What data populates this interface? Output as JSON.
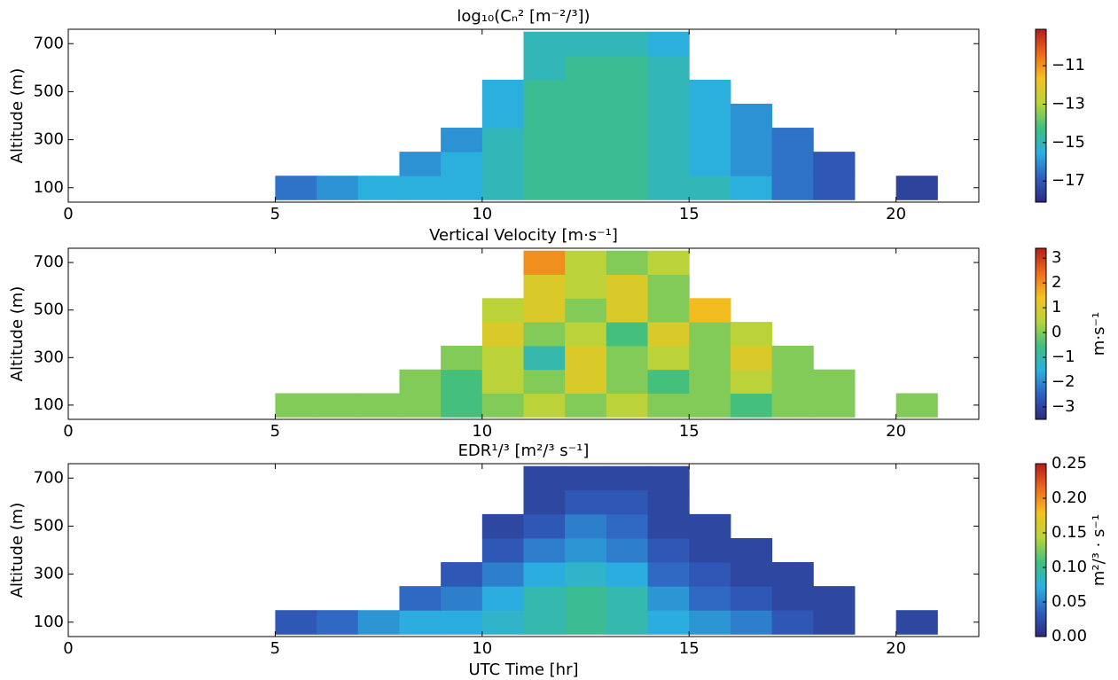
{
  "chart_data": [
    {
      "type": "heatmap",
      "title": "log₁₀(Cₙ²  [m⁻²/³])",
      "ylabel": "Altitude  (m)",
      "xlim": [
        0,
        22
      ],
      "xticks": [
        0,
        5,
        10,
        15,
        20
      ],
      "ylim": [
        40,
        760
      ],
      "yticks": [
        100,
        300,
        500,
        700
      ],
      "xbins": [
        0,
        1,
        2,
        3,
        4,
        5,
        6,
        7,
        8,
        9,
        10,
        11,
        12,
        13,
        14,
        15,
        16,
        17,
        18,
        19,
        20,
        21,
        22
      ],
      "ybins": [
        50,
        150,
        250,
        350,
        450,
        550,
        650,
        750
      ],
      "z": [
        [
          null,
          null,
          null,
          null,
          null,
          -16.5,
          -16,
          -15.5,
          -15.5,
          -15.5,
          -15,
          -14.5,
          -14.5,
          -14.5,
          -15,
          -15,
          -15.5,
          -16.5,
          -17,
          null,
          -17.5,
          null
        ],
        [
          null,
          null,
          null,
          null,
          null,
          null,
          null,
          null,
          -16,
          -15.5,
          -15,
          -14.5,
          -14.5,
          -14.5,
          -15,
          -15.5,
          -16,
          -16.5,
          -17,
          null,
          null,
          null
        ],
        [
          null,
          null,
          null,
          null,
          null,
          null,
          null,
          null,
          null,
          -16,
          -15,
          -14.5,
          -14.5,
          -14.5,
          -15,
          -15.5,
          -16,
          -16.5,
          null,
          null,
          null,
          null
        ],
        [
          null,
          null,
          null,
          null,
          null,
          null,
          null,
          null,
          null,
          null,
          -15.5,
          -14.5,
          -14.5,
          -14.5,
          -15,
          -15.5,
          -16,
          null,
          null,
          null,
          null,
          null
        ],
        [
          null,
          null,
          null,
          null,
          null,
          null,
          null,
          null,
          null,
          null,
          -15.5,
          -14.5,
          -14.5,
          -14.5,
          -15,
          -15.5,
          null,
          null,
          null,
          null,
          null,
          null
        ],
        [
          null,
          null,
          null,
          null,
          null,
          null,
          null,
          null,
          null,
          null,
          null,
          -15,
          -14.5,
          -14.5,
          -15,
          null,
          null,
          null,
          null,
          null,
          null,
          null
        ],
        [
          null,
          null,
          null,
          null,
          null,
          null,
          null,
          null,
          null,
          null,
          null,
          -15,
          -15,
          -15,
          -15.5,
          null,
          null,
          null,
          null,
          null,
          null,
          null
        ]
      ],
      "clim": [
        -18.1,
        -9.1
      ],
      "cticks": [
        {
          "value": -17,
          "label": "−17"
        },
        {
          "value": -15,
          "label": "−15"
        },
        {
          "value": -13,
          "label": "−13"
        },
        {
          "value": -11,
          "label": "−11"
        }
      ],
      "colormap": [
        "#2c2a7e",
        "#2f5fbf",
        "#2bb0e0",
        "#3fbf7f",
        "#b8d43a",
        "#f3c21e",
        "#ef6a1c",
        "#b51b1b"
      ]
    },
    {
      "type": "heatmap",
      "title": "Vertical Velocity   [m·s⁻¹]",
      "ylabel": "Altitude  (m)",
      "clabel": "m·s⁻¹",
      "xlim": [
        0,
        22
      ],
      "xticks": [
        0,
        5,
        10,
        15,
        20
      ],
      "ylim": [
        40,
        760
      ],
      "yticks": [
        100,
        300,
        500,
        700
      ],
      "xbins": [
        0,
        1,
        2,
        3,
        4,
        5,
        6,
        7,
        8,
        9,
        10,
        11,
        12,
        13,
        14,
        15,
        16,
        17,
        18,
        19,
        20,
        21,
        22
      ],
      "ybins": [
        50,
        150,
        250,
        350,
        450,
        550,
        650,
        750
      ],
      "z": [
        [
          null,
          null,
          null,
          null,
          null,
          0,
          0,
          0,
          0,
          -0.5,
          0,
          0.5,
          0,
          0.5,
          0,
          0,
          -0.5,
          0,
          0,
          null,
          0,
          null
        ],
        [
          null,
          null,
          null,
          null,
          null,
          null,
          null,
          null,
          0,
          -0.5,
          0.5,
          0,
          1,
          0,
          -0.5,
          0,
          0.5,
          0,
          0,
          null,
          null,
          null
        ],
        [
          null,
          null,
          null,
          null,
          null,
          null,
          null,
          null,
          null,
          0,
          0.5,
          -1,
          1,
          0,
          0.5,
          0,
          1,
          0,
          null,
          null,
          null,
          null
        ],
        [
          null,
          null,
          null,
          null,
          null,
          null,
          null,
          null,
          null,
          null,
          1,
          0,
          0.5,
          -0.5,
          1,
          0,
          0.5,
          null,
          null,
          null,
          null,
          null
        ],
        [
          null,
          null,
          null,
          null,
          null,
          null,
          null,
          null,
          null,
          null,
          0.5,
          1,
          0,
          1,
          0,
          1.5,
          null,
          null,
          null,
          null,
          null,
          null
        ],
        [
          null,
          null,
          null,
          null,
          null,
          null,
          null,
          null,
          null,
          null,
          null,
          1,
          0.5,
          1,
          0,
          null,
          null,
          null,
          null,
          null,
          null,
          null
        ],
        [
          null,
          null,
          null,
          null,
          null,
          null,
          null,
          null,
          null,
          null,
          null,
          2,
          0.5,
          0,
          0.5,
          null,
          null,
          null,
          null,
          null,
          null,
          null
        ]
      ],
      "clim": [
        -3.5,
        3.4
      ],
      "cticks": [
        {
          "value": -3,
          "label": "−3"
        },
        {
          "value": -2,
          "label": "−2"
        },
        {
          "value": -1,
          "label": "−1"
        },
        0,
        1,
        2,
        3
      ],
      "colormap": [
        "#2c2a7e",
        "#2f5fbf",
        "#2bb0e0",
        "#3fbf7f",
        "#b8d43a",
        "#f3c21e",
        "#ef6a1c",
        "#b51b1b"
      ]
    },
    {
      "type": "heatmap",
      "title": "EDR¹/³  [m²/³ s⁻¹]",
      "ylabel": "Altitude  (m)",
      "xlabel": "UTC  Time [hr]",
      "clabel": "m²/³ · s⁻¹",
      "xlim": [
        0,
        22
      ],
      "xticks": [
        0,
        5,
        10,
        15,
        20
      ],
      "ylim": [
        40,
        760
      ],
      "yticks": [
        100,
        300,
        500,
        700
      ],
      "xbins": [
        0,
        1,
        2,
        3,
        4,
        5,
        6,
        7,
        8,
        9,
        10,
        11,
        12,
        13,
        14,
        15,
        16,
        17,
        18,
        19,
        20,
        21,
        22
      ],
      "ybins": [
        50,
        150,
        250,
        350,
        450,
        550,
        650,
        750
      ],
      "z": [
        [
          null,
          null,
          null,
          null,
          null,
          0.03,
          0.04,
          0.06,
          0.07,
          0.07,
          0.08,
          0.09,
          0.1,
          0.09,
          0.07,
          0.06,
          0.05,
          0.03,
          0.02,
          null,
          0.02,
          null
        ],
        [
          null,
          null,
          null,
          null,
          null,
          null,
          null,
          null,
          0.04,
          0.05,
          0.07,
          0.09,
          0.1,
          0.09,
          0.06,
          0.04,
          0.03,
          0.02,
          0.02,
          null,
          null,
          null
        ],
        [
          null,
          null,
          null,
          null,
          null,
          null,
          null,
          null,
          null,
          0.03,
          0.05,
          0.07,
          0.08,
          0.07,
          0.04,
          0.03,
          0.02,
          0.02,
          null,
          null,
          null,
          null
        ],
        [
          null,
          null,
          null,
          null,
          null,
          null,
          null,
          null,
          null,
          null,
          0.03,
          0.05,
          0.06,
          0.05,
          0.03,
          0.02,
          0.02,
          null,
          null,
          null,
          null,
          null
        ],
        [
          null,
          null,
          null,
          null,
          null,
          null,
          null,
          null,
          null,
          null,
          0.02,
          0.03,
          0.05,
          0.04,
          0.02,
          0.02,
          null,
          null,
          null,
          null,
          null,
          null
        ],
        [
          null,
          null,
          null,
          null,
          null,
          null,
          null,
          null,
          null,
          null,
          null,
          0.02,
          0.03,
          0.03,
          0.02,
          null,
          null,
          null,
          null,
          null,
          null,
          null
        ],
        [
          null,
          null,
          null,
          null,
          null,
          null,
          null,
          null,
          null,
          null,
          null,
          0.02,
          0.02,
          0.02,
          0.02,
          null,
          null,
          null,
          null,
          null,
          null,
          null
        ]
      ],
      "clim": [
        0,
        0.25
      ],
      "cticks": [
        {
          "value": 0,
          "label": "0.00"
        },
        {
          "value": 0.05,
          "label": "0.05"
        },
        {
          "value": 0.1,
          "label": "0.10"
        },
        {
          "value": 0.15,
          "label": "0.15"
        },
        {
          "value": 0.2,
          "label": "0.20"
        },
        {
          "value": 0.25,
          "label": "0.25"
        }
      ],
      "colormap": [
        "#2c2a7e",
        "#2f5fbf",
        "#2bb0e0",
        "#3fbf7f",
        "#b8d43a",
        "#f3c21e",
        "#ef6a1c",
        "#b51b1b"
      ]
    }
  ]
}
